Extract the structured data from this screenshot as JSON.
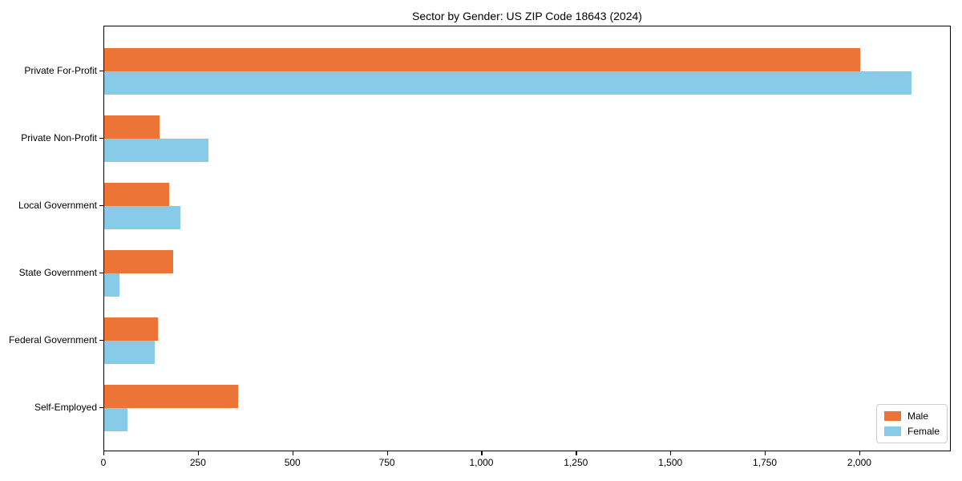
{
  "chart_data": {
    "type": "bar",
    "orientation": "horizontal",
    "title": "Sector by Gender: US ZIP Code 18643 (2024)",
    "categories": [
      "Private For-Profit",
      "Private Non-Profit",
      "Local Government",
      "State Government",
      "Federal Government",
      "Self-Employed"
    ],
    "series": [
      {
        "name": "Male",
        "color": "#ec7437",
        "values": [
          2000,
          147,
          171,
          183,
          143,
          355
        ]
      },
      {
        "name": "Female",
        "color": "#87cbe8",
        "values": [
          2135,
          276,
          201,
          40,
          133,
          61
        ]
      }
    ],
    "xlabel": "",
    "ylabel": "",
    "xlim": [
      0,
      2242
    ],
    "xticks": [
      {
        "value": 0,
        "label": "0"
      },
      {
        "value": 250,
        "label": "250"
      },
      {
        "value": 500,
        "label": "500"
      },
      {
        "value": 750,
        "label": "750"
      },
      {
        "value": 1000,
        "label": "1,000"
      },
      {
        "value": 1250,
        "label": "1,250"
      },
      {
        "value": 1500,
        "label": "1,500"
      },
      {
        "value": 1750,
        "label": "1,750"
      },
      {
        "value": 2000,
        "label": "2,000"
      }
    ],
    "grid": false,
    "legend_position": "lower right",
    "background_color": "#ffffff",
    "spine_color": "#000000"
  }
}
